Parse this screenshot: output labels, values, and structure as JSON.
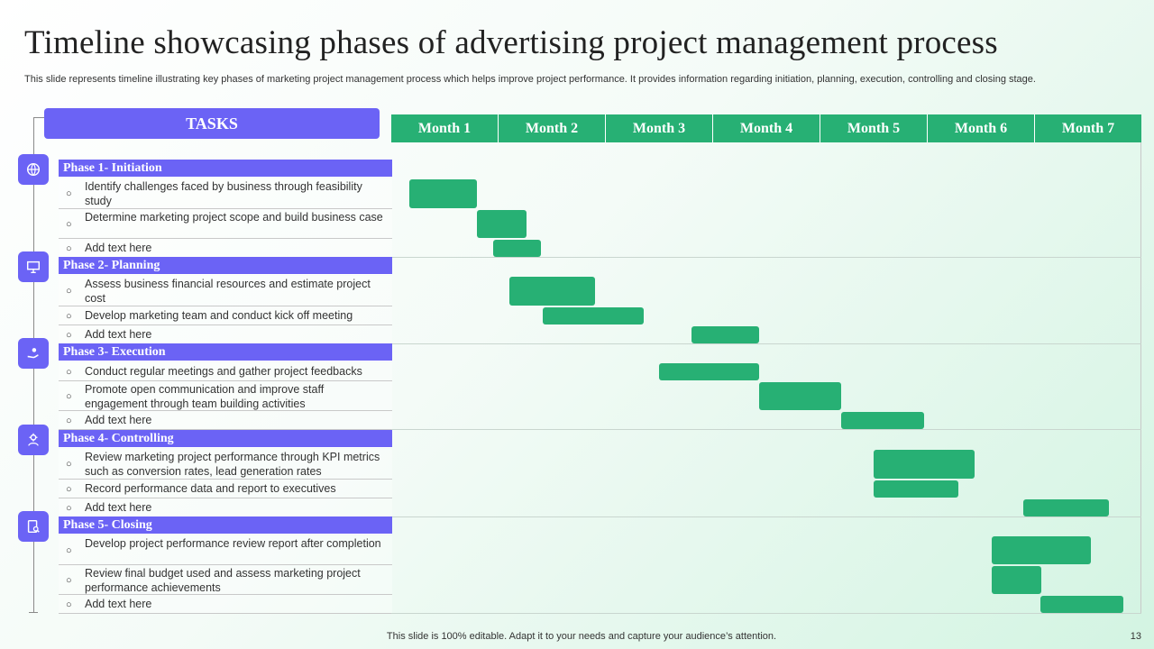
{
  "title": "Timeline showcasing phases of advertising project management process",
  "subtitle": "This slide represents timeline illustrating key phases of marketing project management process which helps improve project performance. It provides information regarding initiation, planning, execution, controlling and closing stage.",
  "tasks_header": "TASKS",
  "months": [
    "Month 1",
    "Month 2",
    "Month 3",
    "Month 4",
    "Month 5",
    "Month 6",
    "Month 7"
  ],
  "bullet": "○",
  "phases": [
    {
      "label": "Phase 1- Initiation",
      "icon": "globe-icon",
      "tasks": [
        {
          "text": "Identify challenges faced by business through feasibility study",
          "start": 0.17,
          "end": 0.8
        },
        {
          "text": "Determine marketing project scope and build business case",
          "start": 0.8,
          "end": 1.26
        },
        {
          "text": "Add text here",
          "start": 0.95,
          "end": 1.4
        }
      ]
    },
    {
      "label": "Phase 2- Planning",
      "icon": "presentation-board-icon",
      "tasks": [
        {
          "text": "Assess business financial resources and estimate project cost",
          "start": 1.1,
          "end": 1.9
        },
        {
          "text": "Develop marketing team and conduct kick off meeting",
          "start": 1.41,
          "end": 2.36
        },
        {
          "text": "Add text here",
          "start": 2.8,
          "end": 3.43
        }
      ]
    },
    {
      "label": "Phase 3- Execution",
      "icon": "hand-person-icon",
      "tasks": [
        {
          "text": "Conduct regular meetings and gather project feedbacks",
          "start": 2.5,
          "end": 3.43
        },
        {
          "text": "Promote open communication and improve staff engagement through team building activities",
          "start": 3.43,
          "end": 4.2
        },
        {
          "text": "Add text here",
          "start": 4.2,
          "end": 4.97
        }
      ]
    },
    {
      "label": "Phase 4- Controlling",
      "icon": "hand-settings-icon",
      "tasks": [
        {
          "text": "Review marketing project performance through KPI metrics such as conversion rates, lead generation rates",
          "start": 4.5,
          "end": 5.44
        },
        {
          "text": "Record performance data and report to executives",
          "start": 4.5,
          "end": 5.29
        },
        {
          "text": "Add text here",
          "start": 5.9,
          "end": 6.7
        }
      ]
    },
    {
      "label": "Phase 5- Closing",
      "icon": "clipboard-search-icon",
      "tasks": [
        {
          "text": "Develop project performance review report after completion",
          "start": 5.6,
          "end": 6.53
        },
        {
          "text": "Review final budget used and assess marketing project performance achievements",
          "start": 5.6,
          "end": 6.07
        },
        {
          "text": "Add text here",
          "start": 6.06,
          "end": 6.83
        }
      ]
    }
  ],
  "footer": "This slide is 100% editable. Adapt it to your needs and capture your audience’s attention.",
  "page_number": "13",
  "colors": {
    "accent_purple": "#6b63f5",
    "accent_green": "#27b074"
  }
}
